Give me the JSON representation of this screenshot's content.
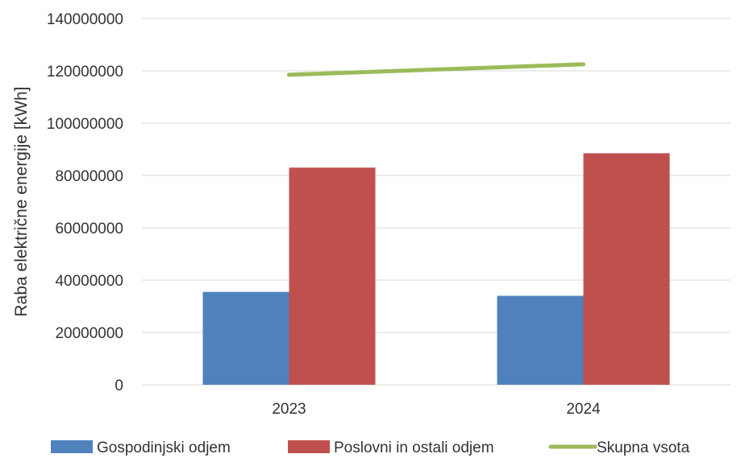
{
  "chart_data": {
    "type": "bar",
    "title": "",
    "xlabel": "",
    "ylabel": "Raba električne energije [kWh]",
    "categories": [
      "2023",
      "2024"
    ],
    "ylim": [
      0,
      140000000
    ],
    "yticks": [
      0,
      20000000,
      40000000,
      60000000,
      80000000,
      100000000,
      120000000,
      140000000
    ],
    "grid": true,
    "legend_position": "bottom",
    "series": [
      {
        "name": "Gospodinjski odjem",
        "type": "bar",
        "color": "#4f81bd",
        "values": [
          35500000,
          34000000
        ]
      },
      {
        "name": "Poslovni in ostali odjem",
        "type": "bar",
        "color": "#c0504d",
        "values": [
          83000000,
          88500000
        ]
      },
      {
        "name": "Skupna vsota",
        "type": "line",
        "color": "#9bbb59",
        "values": [
          118500000,
          122500000
        ]
      }
    ]
  }
}
